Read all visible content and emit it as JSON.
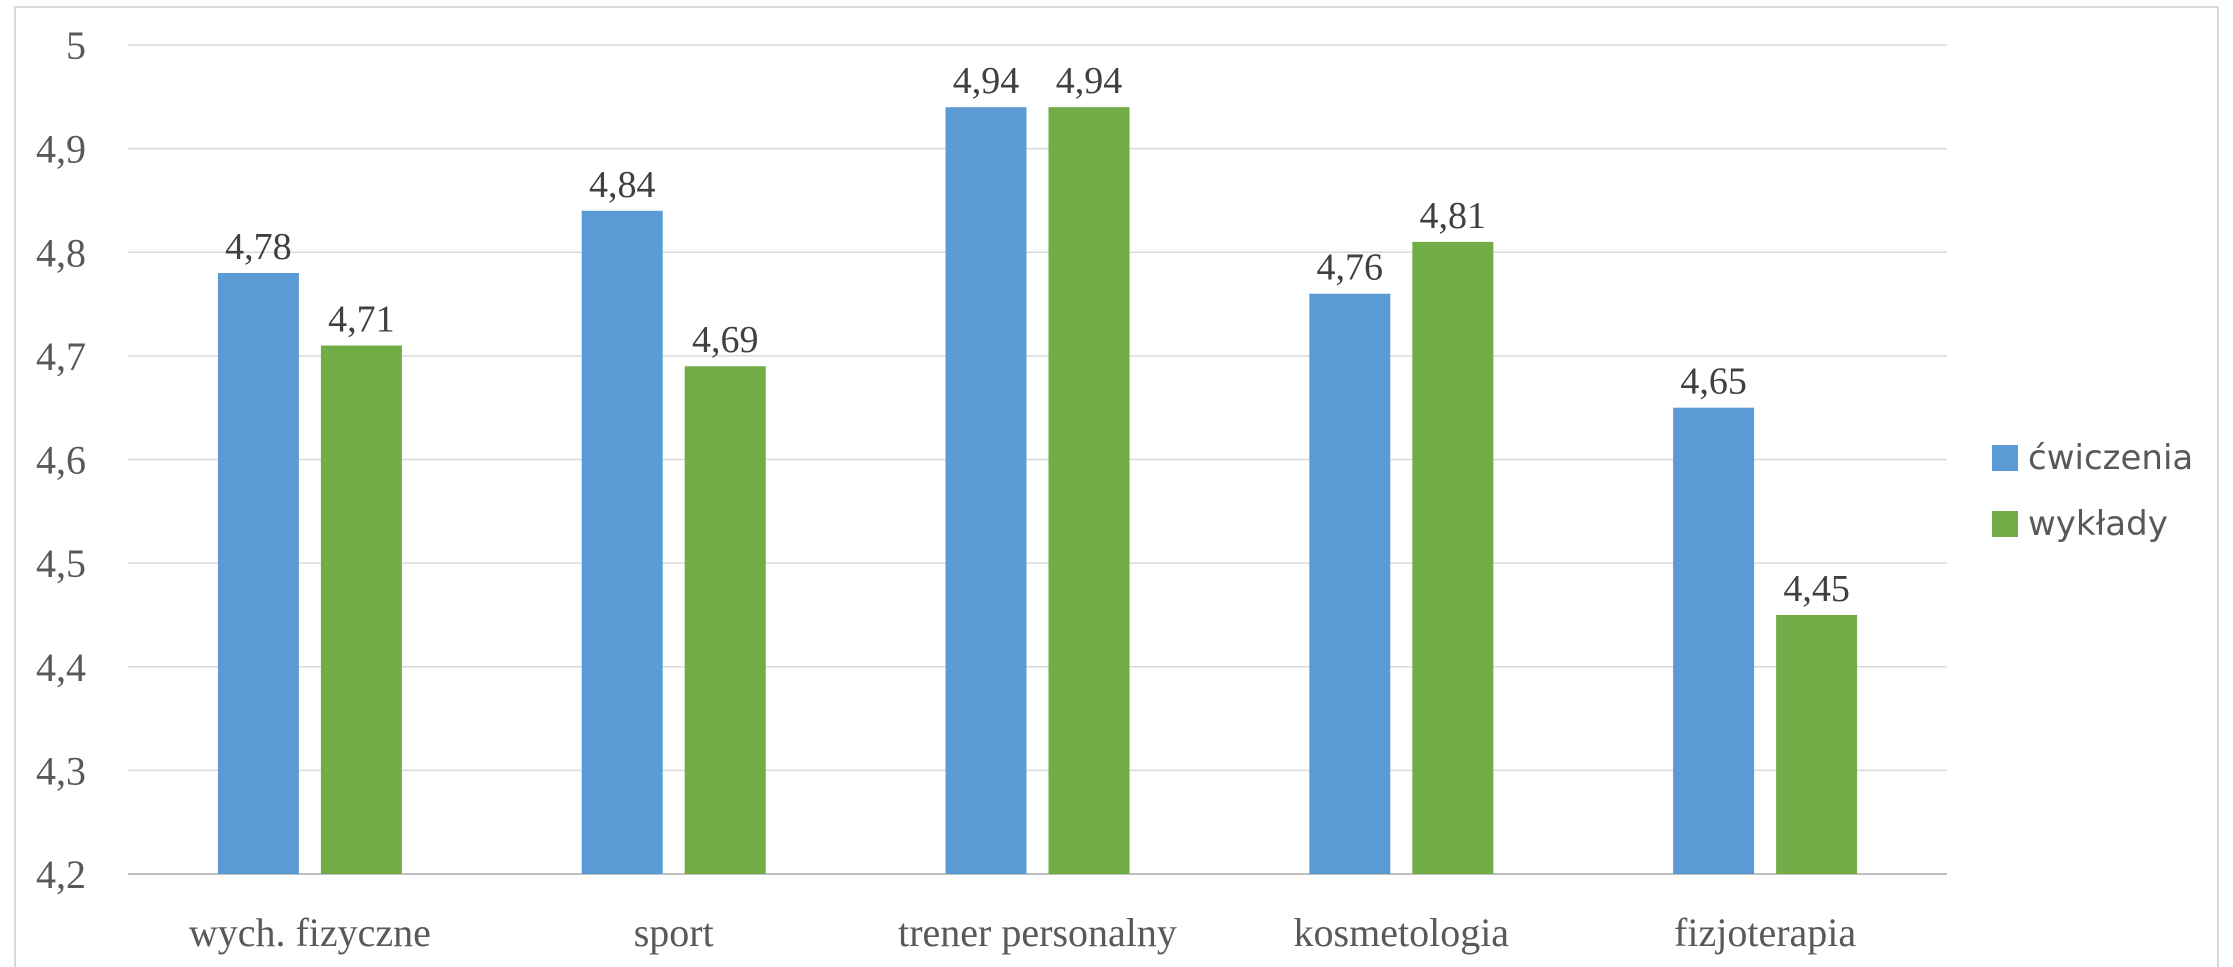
{
  "chart_data": {
    "type": "bar",
    "categories": [
      "wych. fizyczne",
      "sport",
      "trener personalny",
      "kosmetologia",
      "fizjoterapia"
    ],
    "series": [
      {
        "name": "ćwiczenia",
        "color": "#5b9bd5",
        "values": [
          4.78,
          4.84,
          4.94,
          4.76,
          4.65
        ],
        "labels": [
          "4,78",
          "4,84",
          "4,94",
          "4,76",
          "4,65"
        ]
      },
      {
        "name": "wykłady",
        "color": "#70ad47",
        "values": [
          4.71,
          4.69,
          4.94,
          4.81,
          4.45
        ],
        "labels": [
          "4,71",
          "4,69",
          "4,94",
          "4,81",
          "4,45"
        ]
      }
    ],
    "ylim": [
      4.2,
      5.0
    ],
    "yticks": [
      4.2,
      4.3,
      4.4,
      4.5,
      4.6,
      4.7,
      4.8,
      4.9,
      5.0
    ],
    "ytick_labels": [
      "4,2",
      "4,3",
      "4,4",
      "4,5",
      "4,6",
      "4,7",
      "4,8",
      "4,9",
      "5"
    ],
    "grid": true,
    "legend_position": "right"
  }
}
